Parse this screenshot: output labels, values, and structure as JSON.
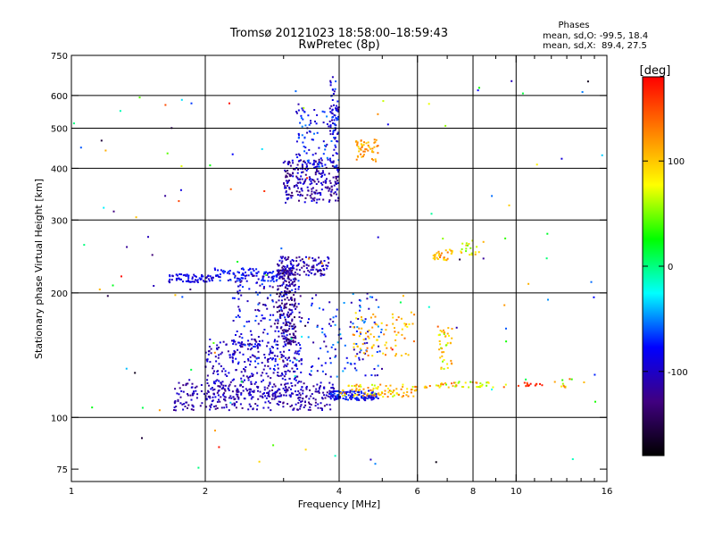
{
  "chart_data": {
    "type": "scatter",
    "title": "Tromsø 20121023 18:58:00–18:59:43",
    "subtitle": "RwPretec (8p)",
    "xlabel": "Frequency [MHz]",
    "ylabel": "Stationary phase Virtual Height [km]",
    "x_scale": "log",
    "y_scale": "log",
    "xlim": [
      1,
      16
    ],
    "ylim": [
      70,
      750
    ],
    "xticks": [
      1,
      2,
      4,
      6,
      8,
      10,
      16
    ],
    "xtick_labels": [
      "1",
      "2",
      "4",
      "6",
      "8",
      "10",
      "16"
    ],
    "x_minor_ticks": [
      3,
      5,
      7,
      9,
      11,
      12,
      13,
      14,
      15
    ],
    "yticks": [
      75,
      100,
      200,
      300,
      400,
      500,
      600,
      750
    ],
    "ytick_labels": [
      "75",
      "100",
      "200",
      "300",
      "400",
      "500",
      "600",
      "750"
    ],
    "grid": true,
    "grid_x": [
      2,
      4,
      6,
      8,
      10
    ],
    "grid_y": [
      100,
      200,
      300,
      400,
      500,
      600
    ],
    "annotation": {
      "heading": "Phases",
      "lines": [
        "mean, sd,O: -99.5, 18.4",
        "mean, sd,X:  89.4, 27.5"
      ]
    },
    "colorbar": {
      "label": "[deg]",
      "range": [
        -180,
        180
      ],
      "ticks": [
        100,
        0,
        -100
      ],
      "tick_labels": [
        "100",
        "0",
        "-100"
      ],
      "colors": [
        "#ff0000",
        "#ff8000",
        "#ffff00",
        "#00ff00",
        "#00ffff",
        "#0000ff",
        "#400080",
        "#000000"
      ]
    },
    "series": [
      {
        "clusters": [
          {
            "x": [
              1.7,
              3.9
            ],
            "y": [
              104,
              122
            ],
            "n": 340,
            "phase": [
              -130,
              -90
            ]
          },
          {
            "x": [
              2.0,
              3.3
            ],
            "y": [
              112,
              155
            ],
            "n": 260,
            "phase": [
              -120,
              -80
            ]
          },
          {
            "x": [
              2.3,
              3.3
            ],
            "y": [
              130,
              225
            ],
            "n": 260,
            "phase": [
              -130,
              -60
            ]
          },
          {
            "x": [
              2.9,
              3.2
            ],
            "y": [
              150,
              230
            ],
            "n": 160,
            "phase": [
              -150,
              -100
            ]
          },
          {
            "x": [
              3.8,
              4.9
            ],
            "y": [
              110,
              116
            ],
            "n": 130,
            "phase": [
              -110,
              -60
            ]
          },
          {
            "x": [
              4.0,
              6.0
            ],
            "y": [
              112,
              120
            ],
            "n": 90,
            "phase": [
              60,
              140
            ]
          },
          {
            "x": [
              3.4,
              5.0
            ],
            "y": [
              125,
              200
            ],
            "n": 120,
            "phase": [
              -120,
              -40
            ]
          },
          {
            "x": [
              4.3,
              5.9
            ],
            "y": [
              140,
              180
            ],
            "n": 80,
            "phase": [
              80,
              140
            ]
          },
          {
            "x": [
              1.65,
              2.1
            ],
            "y": [
              212,
              222
            ],
            "n": 70,
            "phase": [
              -110,
              -70
            ]
          },
          {
            "x": [
              2.1,
              2.9
            ],
            "y": [
              213,
              230
            ],
            "n": 80,
            "phase": [
              -100,
              -60
            ]
          },
          {
            "x": [
              2.9,
              3.8
            ],
            "y": [
              220,
              245
            ],
            "n": 120,
            "phase": [
              -140,
              -80
            ]
          },
          {
            "x": [
              3.0,
              4.0
            ],
            "y": [
              330,
              420
            ],
            "n": 240,
            "phase": [
              -140,
              -80
            ]
          },
          {
            "x": [
              3.2,
              4.0
            ],
            "y": [
              400,
              560
            ],
            "n": 110,
            "phase": [
              -110,
              -50
            ]
          },
          {
            "x": [
              3.8,
              4.0
            ],
            "y": [
              470,
              660
            ],
            "n": 50,
            "phase": [
              -120,
              -60
            ]
          },
          {
            "x": [
              4.35,
              4.9
            ],
            "y": [
              415,
              470
            ],
            "n": 50,
            "phase": [
              90,
              140
            ]
          },
          {
            "x": [
              6.5,
              7.2
            ],
            "y": [
              240,
              260
            ],
            "n": 30,
            "phase": [
              80,
              140
            ]
          },
          {
            "x": [
              7.5,
              8.5
            ],
            "y": [
              245,
              270
            ],
            "n": 20,
            "phase": [
              40,
              120
            ]
          },
          {
            "x": [
              6.7,
              7.2
            ],
            "y": [
              130,
              165
            ],
            "n": 40,
            "phase": [
              50,
              130
            ]
          },
          {
            "x": [
              6.2,
              9.5
            ],
            "y": [
              118,
              122
            ],
            "n": 50,
            "phase": [
              40,
              160
            ]
          },
          {
            "x": [
              10.0,
              11.5
            ],
            "y": [
              118,
              122
            ],
            "n": 14,
            "phase": [
              150,
              180
            ]
          },
          {
            "x": [
              12.0,
              13.5
            ],
            "y": [
              118,
              124
            ],
            "n": 10,
            "phase": [
              20,
              140
            ]
          },
          {
            "x": [
              1.0,
              16.0
            ],
            "y": [
              75,
              700
            ],
            "n": 120,
            "phase": [
              -180,
              180
            ]
          }
        ]
      }
    ]
  }
}
